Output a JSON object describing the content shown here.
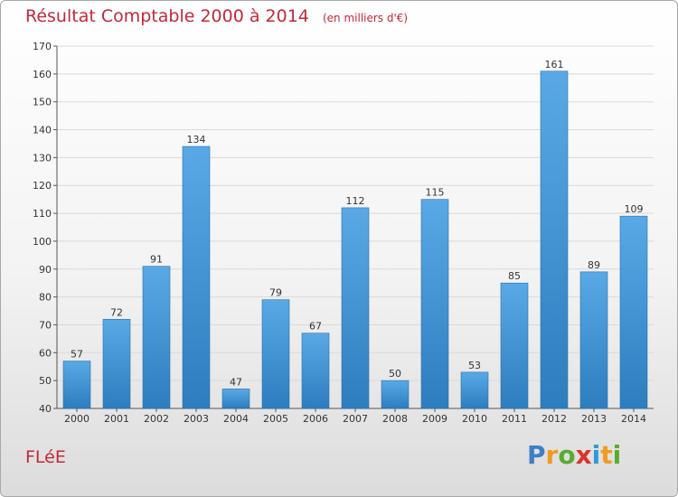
{
  "header": {
    "title": "Résultat Comptable 2000 à 2014",
    "subtitle": "(en milliers d'€)"
  },
  "commune": "FLéE",
  "logo": {
    "letters": [
      "P",
      "r",
      "o",
      "x",
      "i",
      "t",
      "i"
    ],
    "colors": [
      "#3d7fc4",
      "#f19a1e",
      "#5aab2f",
      "#d9332a",
      "#2f9ad6",
      "#f19a1e",
      "#5aab2f"
    ]
  },
  "colors": {
    "bar_light": "#5aa9e6",
    "bar_dark": "#2d7dbf",
    "title": "#c2283b"
  },
  "chart_data": {
    "type": "bar",
    "title": "Résultat Comptable 2000 à 2014",
    "subtitle": "(en milliers d'€)",
    "xlabel": "",
    "ylabel": "",
    "ylim": [
      40,
      170
    ],
    "yticks": [
      40,
      50,
      60,
      70,
      80,
      90,
      100,
      110,
      120,
      130,
      140,
      150,
      160,
      170
    ],
    "categories": [
      "2000",
      "2001",
      "2002",
      "2003",
      "2004",
      "2005",
      "2006",
      "2007",
      "2008",
      "2009",
      "2010",
      "2011",
      "2012",
      "2013",
      "2014"
    ],
    "values": [
      57,
      72,
      91,
      134,
      47,
      79,
      67,
      112,
      50,
      115,
      53,
      85,
      161,
      89,
      109
    ]
  }
}
